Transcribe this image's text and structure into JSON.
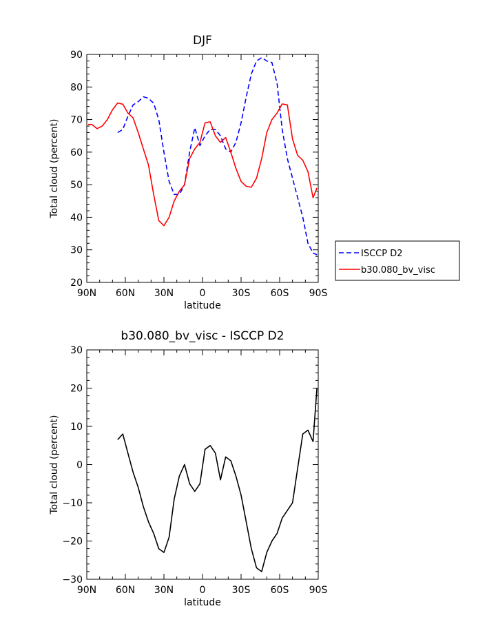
{
  "chart_data": [
    {
      "type": "line",
      "title": "DJF",
      "xlabel": "latitude",
      "ylabel": "Total cloud (percent)",
      "xlim": [
        -90,
        90
      ],
      "ylim": [
        20,
        90
      ],
      "xtick_labels": [
        "90N",
        "60N",
        "30N",
        "0",
        "30S",
        "60S",
        "90S"
      ],
      "ytick_labels": [
        "20",
        "30",
        "40",
        "50",
        "60",
        "70",
        "80",
        "90"
      ],
      "legend_position": "outside-right",
      "series": [
        {
          "name": "ISCCP D2",
          "color": "#0000ff",
          "style": "dashed",
          "x": [
            -66,
            -62,
            -58,
            -54,
            -50,
            -46,
            -42,
            -38,
            -34,
            -30,
            -26,
            -22,
            -18,
            -14,
            -10,
            -6,
            -2,
            2,
            6,
            10,
            14,
            18,
            22,
            26,
            30,
            34,
            38,
            42,
            46,
            50,
            54,
            58,
            62,
            66,
            70,
            74,
            78,
            82,
            86,
            89
          ],
          "y": [
            66,
            67,
            71,
            74.5,
            75.5,
            77,
            76.5,
            75,
            70,
            60,
            51,
            47,
            47,
            50,
            60,
            67.5,
            62,
            65,
            67,
            67,
            65,
            61,
            60,
            63,
            69,
            77,
            84,
            88,
            89,
            88,
            87.5,
            81,
            67,
            58,
            52,
            46,
            40,
            32,
            29,
            28.5
          ]
        },
        {
          "name": "b30.080_bv_visc",
          "color": "#ff0000",
          "style": "solid",
          "x": [
            -89,
            -86,
            -82,
            -78,
            -74,
            -70,
            -66,
            -62,
            -58,
            -54,
            -50,
            -46,
            -42,
            -38,
            -34,
            -30,
            -26,
            -22,
            -18,
            -14,
            -10,
            -6,
            -2,
            2,
            6,
            10,
            14,
            18,
            22,
            26,
            30,
            34,
            38,
            42,
            46,
            50,
            54,
            58,
            62,
            66,
            70,
            74,
            78,
            82,
            86,
            89
          ],
          "y": [
            68.5,
            68.5,
            67.2,
            68,
            70,
            73,
            75.1,
            74.7,
            72,
            70.5,
            66,
            61,
            56,
            47,
            39,
            37.4,
            40,
            45,
            48,
            50,
            58,
            61,
            63,
            69,
            69.3,
            65,
            63,
            64.5,
            60,
            55,
            51,
            49.5,
            49.2,
            52,
            58,
            66,
            70,
            72,
            74.8,
            74.5,
            64,
            59,
            57.5,
            54,
            46,
            49
          ]
        }
      ]
    },
    {
      "type": "line",
      "title": "b30.080_bv_visc - ISCCP D2",
      "xlabel": "latitude",
      "ylabel": "Total cloud (percent)",
      "xlim": [
        -90,
        90
      ],
      "ylim": [
        -30,
        30
      ],
      "xtick_labels": [
        "90N",
        "60N",
        "30N",
        "0",
        "30S",
        "60S",
        "90S"
      ],
      "ytick_labels": [
        "−30",
        "−20",
        "−10",
        "0",
        "10",
        "20",
        "30"
      ],
      "series": [
        {
          "color": "#000000",
          "style": "solid",
          "x": [
            -66,
            -62,
            -58,
            -54,
            -50,
            -46,
            -42,
            -38,
            -34,
            -30,
            -26,
            -22,
            -18,
            -14,
            -10,
            -6,
            -2,
            2,
            6,
            10,
            14,
            18,
            22,
            26,
            30,
            34,
            38,
            42,
            46,
            50,
            54,
            58,
            62,
            66,
            70,
            74,
            78,
            82,
            86,
            89
          ],
          "y": [
            6.5,
            8,
            3,
            -2,
            -6,
            -11,
            -15,
            -18,
            -22,
            -23,
            -19,
            -9,
            -3,
            0,
            -5,
            -7,
            -5,
            4,
            5,
            3,
            -4,
            2,
            1,
            -3,
            -8,
            -15,
            -22,
            -27,
            -28,
            -23,
            -20,
            -18,
            -14,
            -12,
            -10,
            -1,
            8,
            9,
            6,
            20
          ]
        }
      ]
    }
  ]
}
